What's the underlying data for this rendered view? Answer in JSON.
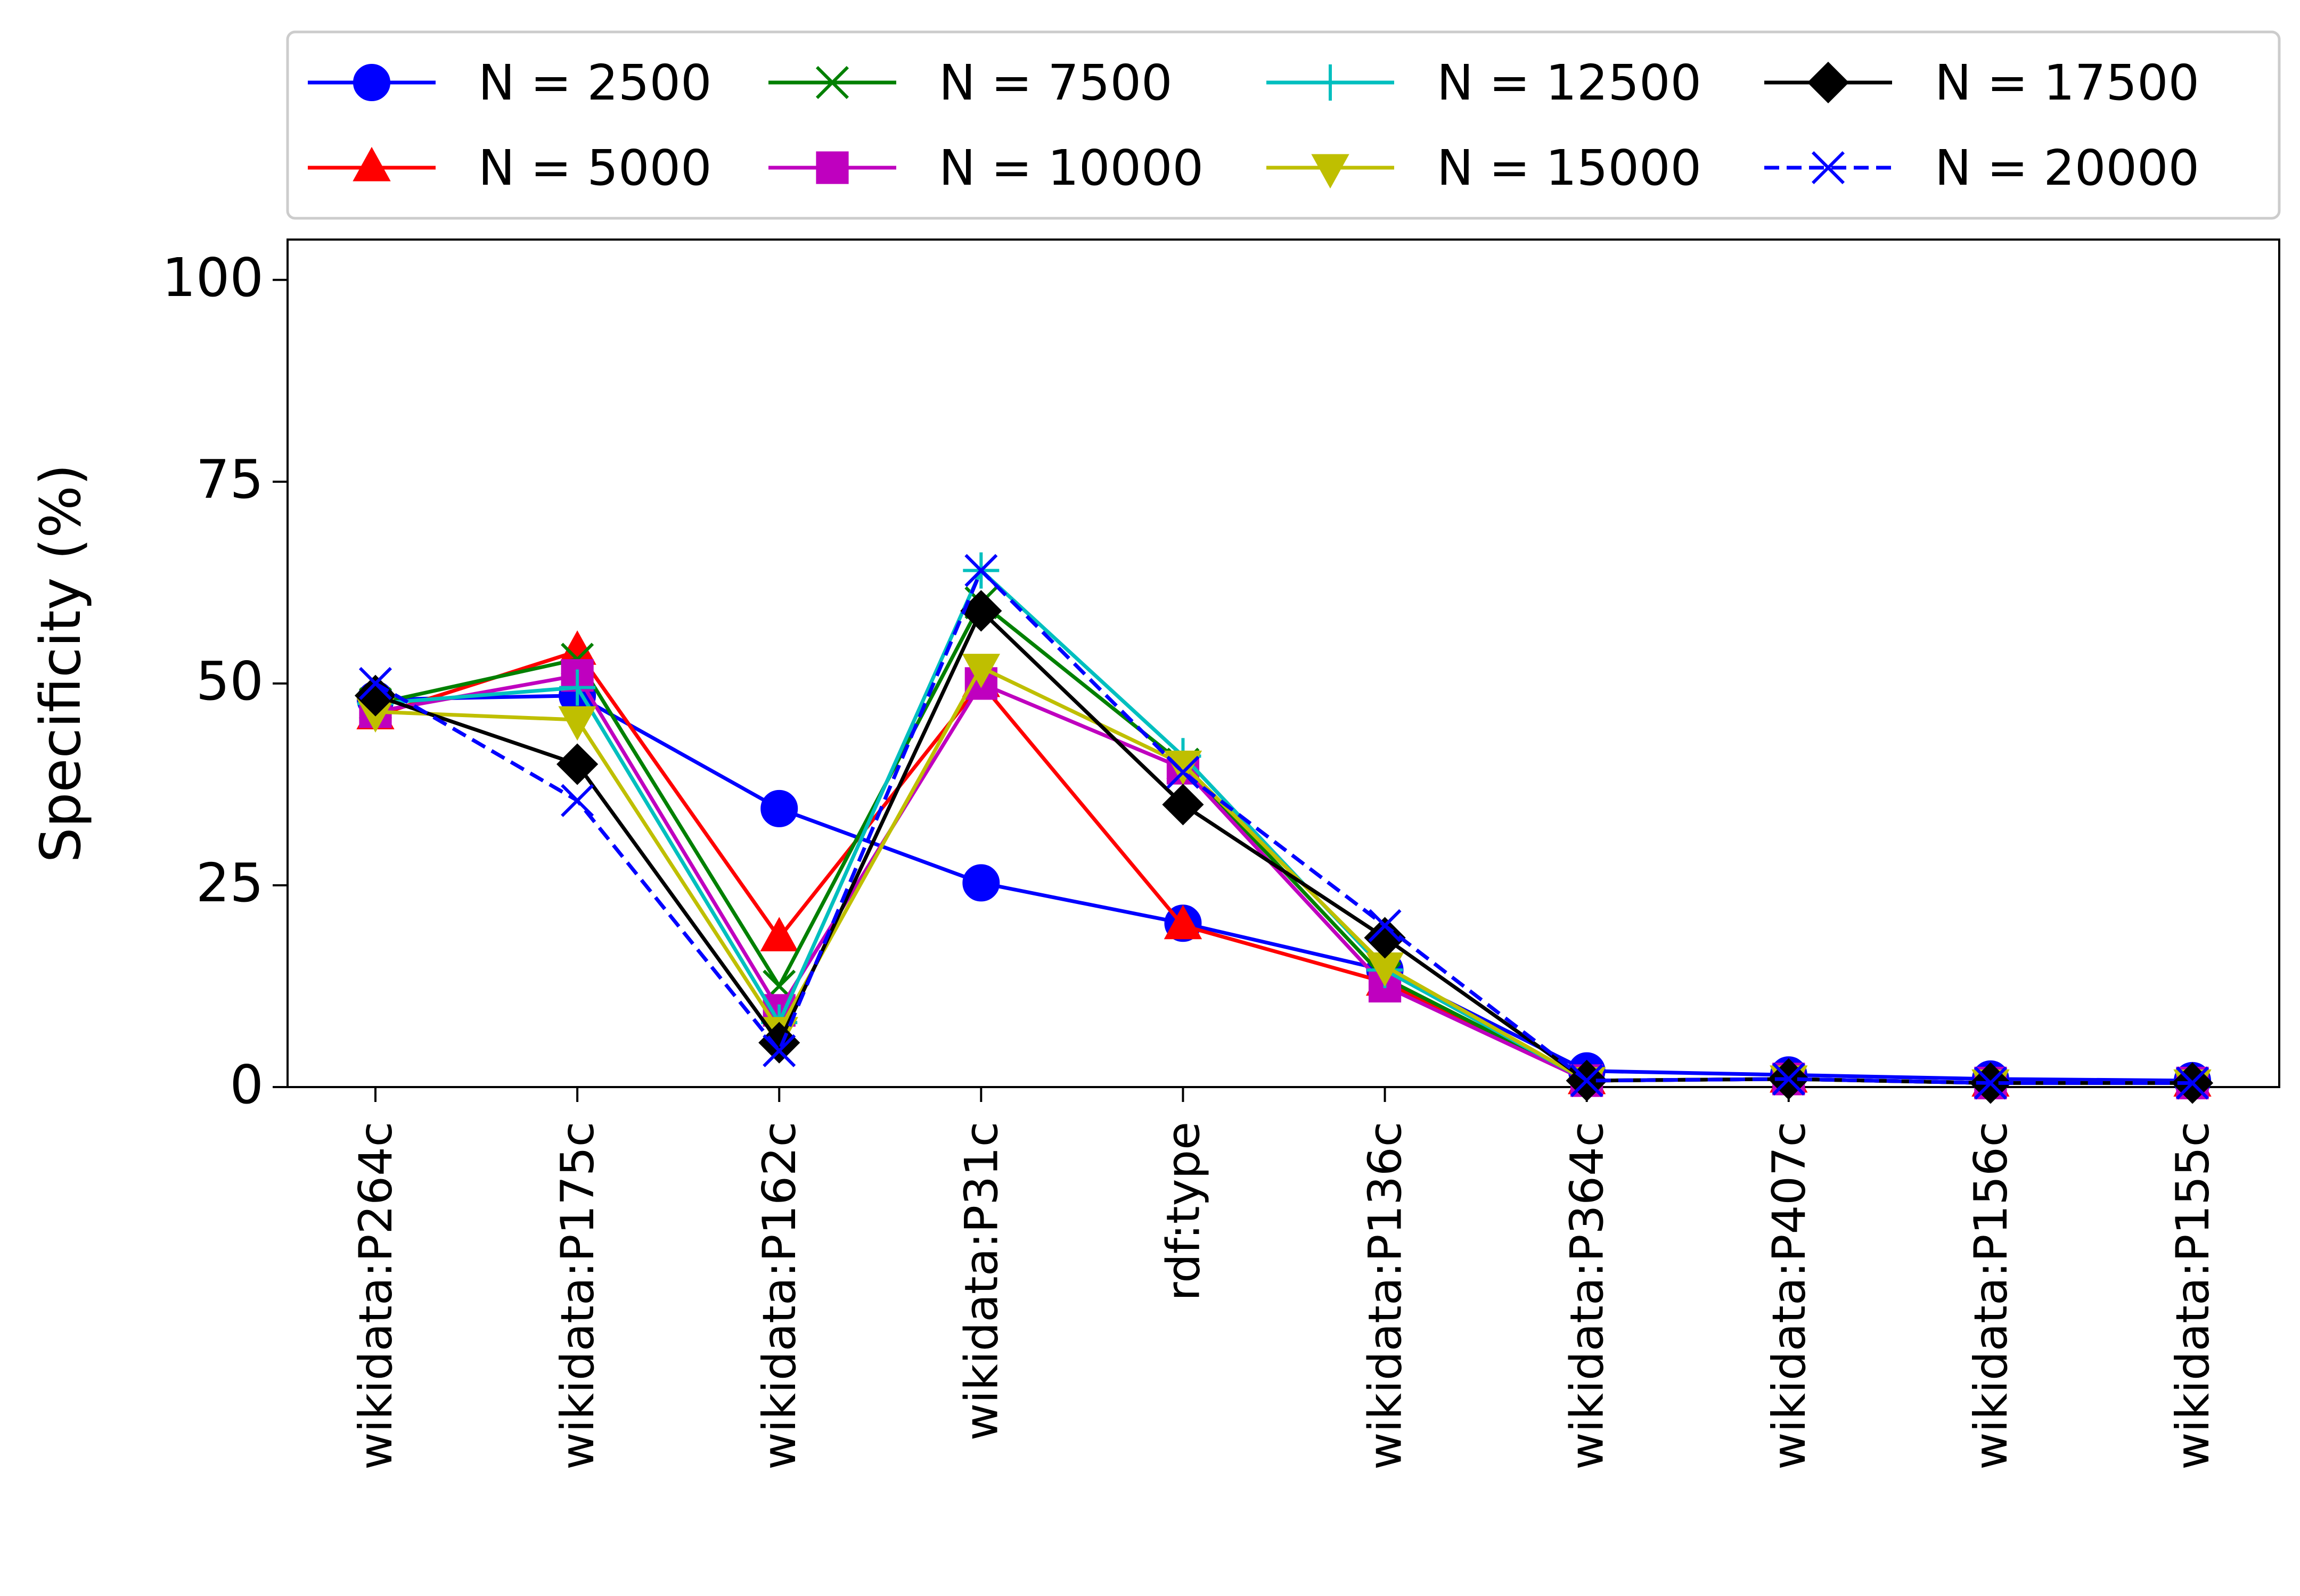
{
  "chart_data": {
    "type": "line",
    "title": "",
    "xlabel": "",
    "ylabel": "Specificity (%)",
    "ylim": [
      0,
      105
    ],
    "yticks": [
      "0",
      "25",
      "50",
      "75",
      "100"
    ],
    "categories": [
      "wikidata:P264c",
      "wikidata:P175c",
      "wikidata:P162c",
      "wikidata:P31c",
      "rdf:type",
      "wikidata:P136c",
      "wikidata:P364c",
      "wikidata:P407c",
      "wikidata:P156c",
      "wikidata:P155c"
    ],
    "grid": false,
    "legend_position": "top, outside plot, 4 columns",
    "series": [
      {
        "name": "N = 2500",
        "color": "#0000ff",
        "marker": "circle",
        "dash": "solid",
        "values": [
          48,
          48.5,
          34.5,
          25.3,
          20.3,
          14.5,
          2,
          1.5,
          1,
          0.8
        ]
      },
      {
        "name": "N = 5000",
        "color": "#ff0000",
        "marker": "triangle-up",
        "dash": "solid",
        "values": [
          46,
          54,
          18.5,
          50,
          20,
          13,
          0.8,
          1,
          0.5,
          0.5
        ]
      },
      {
        "name": "N = 7500",
        "color": "#008000",
        "marker": "x",
        "dash": "solid",
        "values": [
          47.5,
          53,
          12.5,
          60,
          40,
          13.5,
          0.8,
          1,
          0.5,
          0.5
        ]
      },
      {
        "name": "N = 10000",
        "color": "#bf00bf",
        "marker": "square",
        "dash": "solid",
        "values": [
          46.5,
          51,
          9.5,
          50,
          39.5,
          12.5,
          0.8,
          1,
          0.5,
          0.5
        ]
      },
      {
        "name": "N = 12500",
        "color": "#00bfbf",
        "marker": "plus",
        "dash": "solid",
        "values": [
          47.5,
          49.5,
          8,
          64,
          41,
          14.5,
          0.8,
          1,
          0.5,
          0.5
        ]
      },
      {
        "name": "N = 15000",
        "color": "#bfbf00",
        "marker": "triangle-down",
        "dash": "solid",
        "values": [
          46.5,
          45.5,
          7,
          52,
          40,
          15,
          0.8,
          1,
          0.5,
          0.5
        ]
      },
      {
        "name": "N = 17500",
        "color": "#000000",
        "marker": "diamond",
        "dash": "solid",
        "values": [
          48.5,
          40,
          5.5,
          59,
          35,
          18.5,
          0.8,
          1,
          0.5,
          0.5
        ]
      },
      {
        "name": "N = 20000",
        "color": "#0000ff",
        "marker": "x",
        "dash": "dashed",
        "values": [
          50,
          35.5,
          4.5,
          64,
          39,
          20,
          0.8,
          1,
          0.5,
          0.5
        ]
      }
    ]
  }
}
